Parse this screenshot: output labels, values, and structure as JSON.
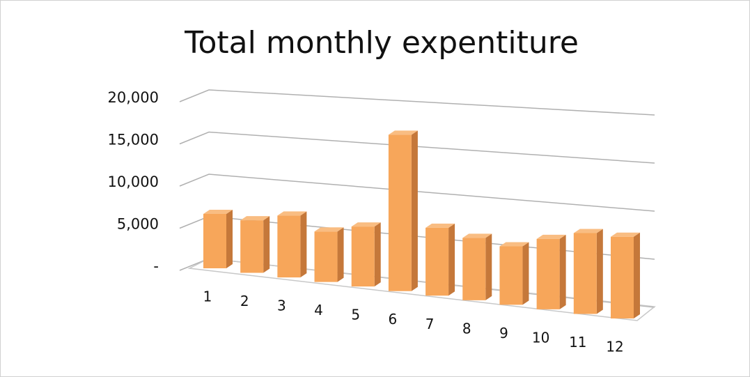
{
  "chart_data": {
    "type": "bar3d",
    "title": "Total monthly expentiture",
    "categories": [
      "1",
      "2",
      "3",
      "4",
      "5",
      "6",
      "7",
      "8",
      "9",
      "10",
      "11",
      "12"
    ],
    "values": [
      6500,
      6200,
      7200,
      5800,
      6800,
      17500,
      7500,
      6800,
      6300,
      7500,
      8500,
      8500
    ],
    "color": "#f7a65a",
    "ylim": [
      0,
      20000
    ],
    "yticks": [
      {
        "value": 0,
        "label": "-"
      },
      {
        "value": 5000,
        "label": "5,000"
      },
      {
        "value": 10000,
        "label": "10,000"
      },
      {
        "value": 15000,
        "label": "15,000"
      },
      {
        "value": 20000,
        "label": "20,000"
      }
    ],
    "grid": true
  }
}
